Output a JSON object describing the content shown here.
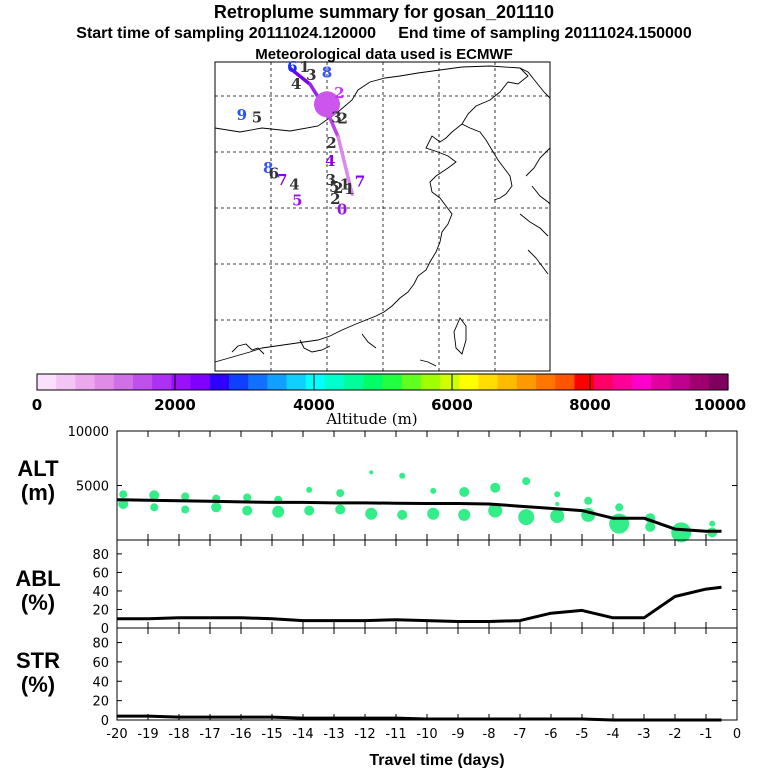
{
  "header": {
    "title": "Retroplume summary for gosan_201110",
    "start_label": "Start time of sampling 20111024.120000",
    "end_label": "End time of sampling 20111024.150000",
    "met_label": "Meteorological data used is ECMWF"
  },
  "colors": {
    "plume_dots": "#33ee88",
    "line": "#000000",
    "colorbar": [
      "#fbe0fb",
      "#f4c4f4",
      "#eca8ec",
      "#e08ce6",
      "#d070e6",
      "#bf50ee",
      "#ad30f5",
      "#9a10fa",
      "#8000ff",
      "#3000ff",
      "#1040ff",
      "#1070ff",
      "#10a0ff",
      "#10d0ff",
      "#00ffff",
      "#00ffcc",
      "#00ff9a",
      "#00ff66",
      "#20ff40",
      "#60ff20",
      "#a0ff00",
      "#d0ff00",
      "#ffff00",
      "#ffdd00",
      "#ffbb00",
      "#ff9900",
      "#ff7700",
      "#ff5500",
      "#ff0000",
      "#ff0066",
      "#ff0099",
      "#ff00cc",
      "#e0009f",
      "#c0008f",
      "#a0006f",
      "#800060"
    ]
  },
  "colorbar": {
    "ticks": [
      "0",
      "2000",
      "4000",
      "6000",
      "8000",
      "10000"
    ],
    "label": "Altitude (m)"
  },
  "map": {
    "trajectory": [
      {
        "lon": 113.5,
        "lat": 44.4,
        "color": "#2266ee"
      },
      {
        "lon": 117.0,
        "lat": 43.0,
        "color": "#7700ee"
      },
      {
        "lon": 120.0,
        "lat": 40.6,
        "color": "#9922ee"
      },
      {
        "lon": 122.0,
        "lat": 38.3,
        "color": "#bb44ee"
      },
      {
        "lon": 124.5,
        "lat": 33.2,
        "color": "#dd88ee"
      }
    ],
    "labels": [
      {
        "text": "6",
        "lon": 113.8,
        "lat": 44.1,
        "color": "#1030ff"
      },
      {
        "text": "1",
        "lon": 116.0,
        "lat": 44.1,
        "color": "#333333"
      },
      {
        "text": "3",
        "lon": 117.2,
        "lat": 43.4,
        "color": "#333333"
      },
      {
        "text": "8",
        "lon": 120.0,
        "lat": 43.6,
        "color": "#3355ff"
      },
      {
        "text": "4",
        "lon": 114.5,
        "lat": 42.6,
        "color": "#333333"
      },
      {
        "text": "2",
        "lon": 122.2,
        "lat": 41.8,
        "color": "#cc33ff"
      },
      {
        "text": "9",
        "lon": 104.8,
        "lat": 39.8,
        "color": "#2255ff"
      },
      {
        "text": "5",
        "lon": 107.5,
        "lat": 39.6,
        "color": "#333333"
      },
      {
        "text": "3",
        "lon": 121.7,
        "lat": 39.6,
        "color": "#333333"
      },
      {
        "text": "2",
        "lon": 122.8,
        "lat": 39.5,
        "color": "#333333"
      },
      {
        "text": "2",
        "lon": 120.8,
        "lat": 37.3,
        "color": "#333333"
      },
      {
        "text": "4",
        "lon": 120.6,
        "lat": 35.7,
        "color": "#8800ee"
      },
      {
        "text": "8",
        "lon": 109.5,
        "lat": 35.1,
        "color": "#3355ff"
      },
      {
        "text": "6",
        "lon": 110.5,
        "lat": 34.6,
        "color": "#333333"
      },
      {
        "text": "7",
        "lon": 112.0,
        "lat": 34.0,
        "color": "#8800ee"
      },
      {
        "text": "4",
        "lon": 114.2,
        "lat": 33.6,
        "color": "#333333"
      },
      {
        "text": "5",
        "lon": 114.7,
        "lat": 32.2,
        "color": "#9911ee"
      },
      {
        "text": "3",
        "lon": 120.7,
        "lat": 34.0,
        "color": "#333333"
      },
      {
        "text": "5",
        "lon": 121.3,
        "lat": 33.4,
        "color": "#333333"
      },
      {
        "text": "2",
        "lon": 122.0,
        "lat": 33.3,
        "color": "#333333"
      },
      {
        "text": "1",
        "lon": 123.2,
        "lat": 33.6,
        "color": "#333333"
      },
      {
        "text": "1",
        "lon": 124.0,
        "lat": 33.2,
        "color": "#333333"
      },
      {
        "text": "7",
        "lon": 125.9,
        "lat": 33.9,
        "color": "#8800ee"
      },
      {
        "text": "2",
        "lon": 121.5,
        "lat": 32.3,
        "color": "#333333"
      },
      {
        "text": "0",
        "lon": 122.7,
        "lat": 31.4,
        "color": "#9911ee"
      }
    ]
  },
  "chart_data": [
    {
      "type": "line",
      "panel": "ALT",
      "label_line1": "ALT",
      "label_line2": "(m)",
      "xlabel": "Travel time (days)",
      "ylim": [
        0,
        10000
      ],
      "yticks": [
        "10000",
        "5000"
      ],
      "x": [
        -20,
        -19,
        -18,
        -17,
        -16,
        -15,
        -14,
        -13,
        -12,
        -11,
        -10,
        -9,
        -8,
        -7,
        -6,
        -5,
        -4,
        -3,
        -2,
        -1,
        -0.5
      ],
      "y": [
        3700,
        3650,
        3600,
        3550,
        3500,
        3450,
        3450,
        3400,
        3400,
        3380,
        3350,
        3350,
        3300,
        3100,
        2900,
        2700,
        2000,
        2000,
        1000,
        800,
        800
      ],
      "scatter": [
        {
          "x": -19.8,
          "y": 4200,
          "s": 4
        },
        {
          "x": -19.8,
          "y": 3300,
          "s": 5
        },
        {
          "x": -18.8,
          "y": 4100,
          "s": 5
        },
        {
          "x": -18.8,
          "y": 3000,
          "s": 4
        },
        {
          "x": -17.8,
          "y": 4000,
          "s": 4
        },
        {
          "x": -17.8,
          "y": 2800,
          "s": 4
        },
        {
          "x": -16.8,
          "y": 3800,
          "s": 4
        },
        {
          "x": -16.8,
          "y": 3000,
          "s": 5
        },
        {
          "x": -15.8,
          "y": 3900,
          "s": 4
        },
        {
          "x": -15.8,
          "y": 2700,
          "s": 5
        },
        {
          "x": -14.8,
          "y": 3700,
          "s": 4
        },
        {
          "x": -14.8,
          "y": 2600,
          "s": 6
        },
        {
          "x": -13.8,
          "y": 4600,
          "s": 3
        },
        {
          "x": -13.8,
          "y": 2700,
          "s": 5
        },
        {
          "x": -12.8,
          "y": 4300,
          "s": 4
        },
        {
          "x": -12.8,
          "y": 2800,
          "s": 5
        },
        {
          "x": -11.8,
          "y": 6200,
          "s": 2
        },
        {
          "x": -11.8,
          "y": 2400,
          "s": 6
        },
        {
          "x": -10.8,
          "y": 5900,
          "s": 3
        },
        {
          "x": -10.8,
          "y": 2300,
          "s": 5
        },
        {
          "x": -9.8,
          "y": 4500,
          "s": 3
        },
        {
          "x": -9.8,
          "y": 2400,
          "s": 6
        },
        {
          "x": -8.8,
          "y": 4400,
          "s": 5
        },
        {
          "x": -8.8,
          "y": 2300,
          "s": 6
        },
        {
          "x": -7.8,
          "y": 4800,
          "s": 5
        },
        {
          "x": -7.8,
          "y": 2700,
          "s": 7
        },
        {
          "x": -6.8,
          "y": 5400,
          "s": 4
        },
        {
          "x": -6.8,
          "y": 2100,
          "s": 8
        },
        {
          "x": -5.8,
          "y": 4200,
          "s": 3
        },
        {
          "x": -5.8,
          "y": 3300,
          "s": 2
        },
        {
          "x": -5.8,
          "y": 2200,
          "s": 7
        },
        {
          "x": -4.8,
          "y": 3600,
          "s": 4
        },
        {
          "x": -4.8,
          "y": 2300,
          "s": 7
        },
        {
          "x": -3.8,
          "y": 3000,
          "s": 4
        },
        {
          "x": -3.8,
          "y": 1500,
          "s": 10
        },
        {
          "x": -2.8,
          "y": 2000,
          "s": 5
        },
        {
          "x": -2.8,
          "y": 1200,
          "s": 5
        },
        {
          "x": -1.8,
          "y": 700,
          "s": 10
        },
        {
          "x": -0.8,
          "y": 1500,
          "s": 3
        },
        {
          "x": -0.8,
          "y": 700,
          "s": 5
        }
      ]
    },
    {
      "type": "line",
      "panel": "ABL",
      "label_line1": "ABL",
      "label_line2": "(%)",
      "ylim": [
        0,
        95
      ],
      "yticks": [
        "80",
        "60",
        "40",
        "20",
        "0"
      ],
      "x": [
        -20,
        -19,
        -18,
        -17,
        -16,
        -15,
        -14,
        -13,
        -12,
        -11,
        -10,
        -9,
        -8,
        -7,
        -6,
        -5,
        -4,
        -3,
        -2,
        -1,
        -0.5
      ],
      "y": [
        10,
        10,
        11,
        11,
        11,
        10,
        8,
        8,
        8,
        9,
        8,
        7,
        7,
        8,
        16,
        19,
        11,
        11,
        34,
        42,
        44
      ]
    },
    {
      "type": "line",
      "panel": "STR",
      "label_line1": "STR",
      "label_line2": "(%)",
      "ylim": [
        0,
        95
      ],
      "yticks": [
        "80",
        "60",
        "40",
        "20",
        "0"
      ],
      "xticks": [
        "-20",
        "-19",
        "-18",
        "-17",
        "-16",
        "-15",
        "-14",
        "-13",
        "-12",
        "-11",
        "-10",
        "-9",
        "-8",
        "-7",
        "-6",
        "-5",
        "-4",
        "-3",
        "-2",
        "-1",
        "0"
      ],
      "x": [
        -20,
        -19,
        -18,
        -17,
        -16,
        -15,
        -14,
        -13,
        -12,
        -11,
        -10,
        -9,
        -8,
        -7,
        -6,
        -5,
        -4,
        -3,
        -2,
        -1,
        -0.5
      ],
      "y": [
        4,
        4,
        3,
        3,
        3,
        3,
        2,
        2,
        2,
        2,
        1,
        1,
        1,
        1,
        1,
        1,
        0,
        0,
        0,
        0,
        0
      ]
    }
  ]
}
